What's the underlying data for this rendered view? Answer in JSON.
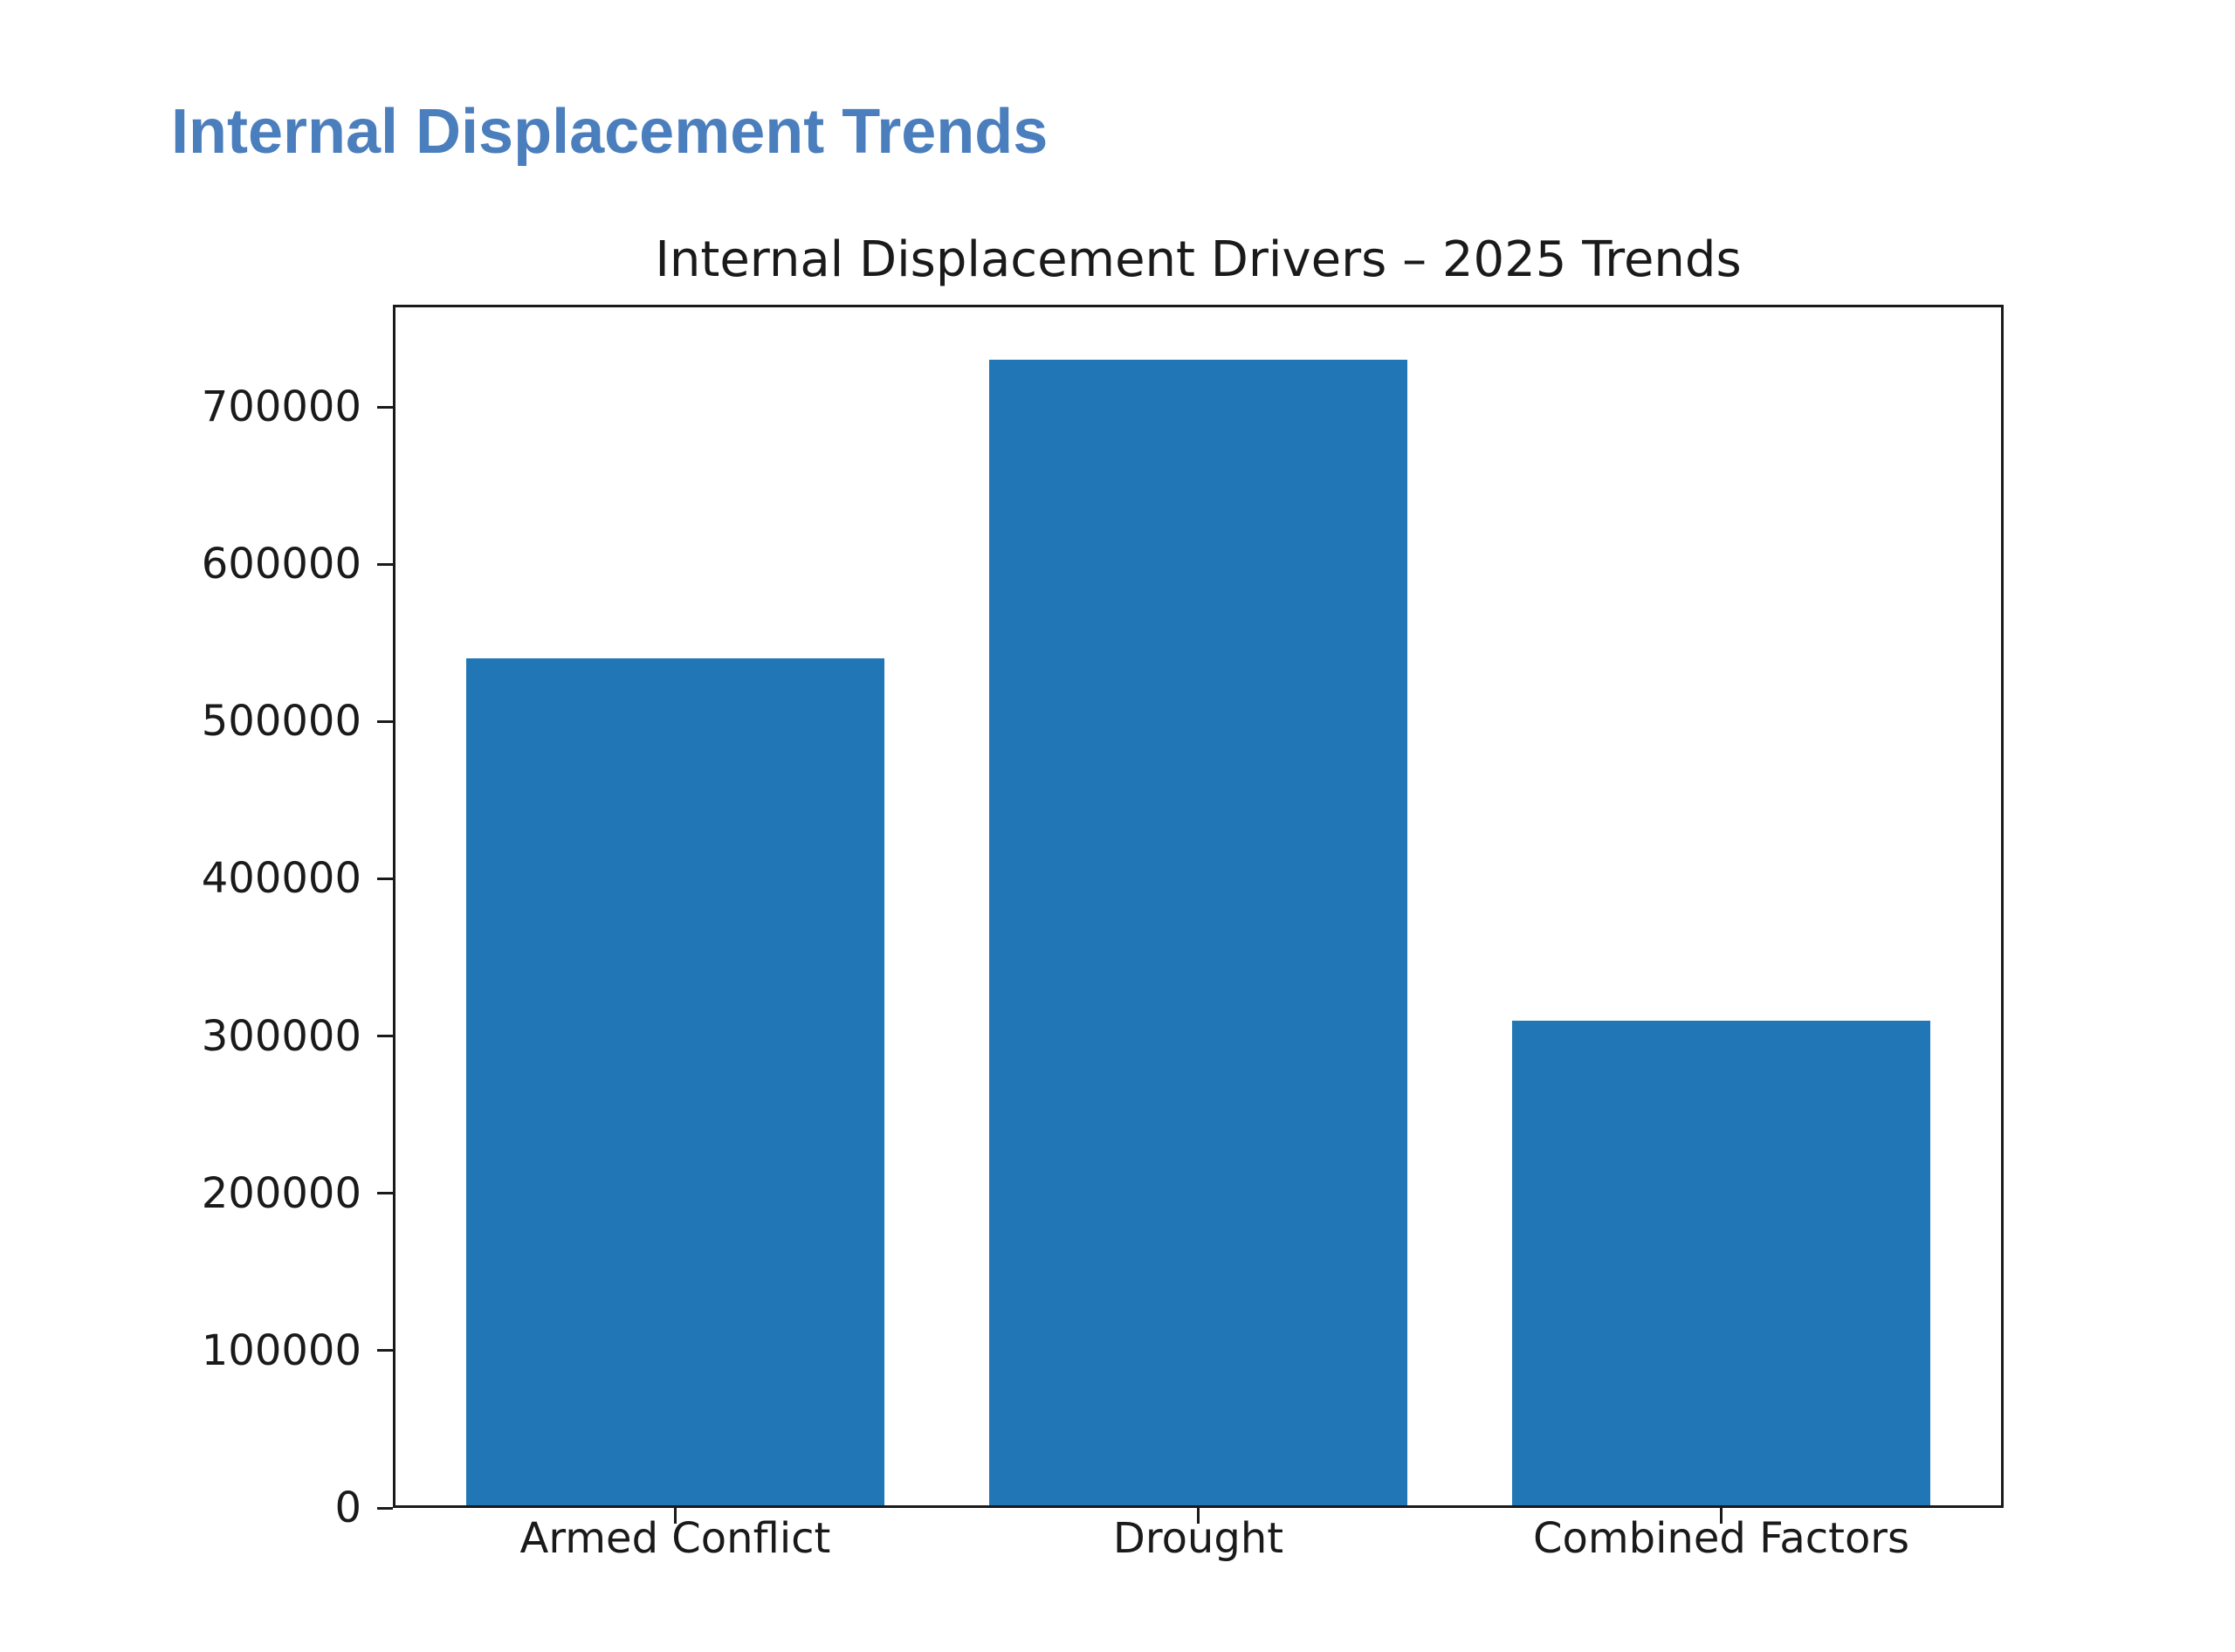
{
  "page": {
    "heading": "Internal Displacement Trends",
    "heading_color": "#4a7ebc",
    "background": "#ffffff"
  },
  "chart_data": {
    "type": "bar",
    "title": "Internal Displacement Drivers – 2025 Trends",
    "categories": [
      "Armed Conflict",
      "Drought",
      "Combined Factors"
    ],
    "values": [
      540000,
      730000,
      310000
    ],
    "xlabel": "",
    "ylabel": "",
    "ylim": [
      0,
      765000
    ],
    "yticks": [
      0,
      100000,
      200000,
      300000,
      400000,
      500000,
      600000,
      700000
    ],
    "grid": false,
    "legend": null,
    "bar_color": "#2176b5",
    "axis_color": "#1a1a1a",
    "text_color": "#1a1a1a"
  }
}
